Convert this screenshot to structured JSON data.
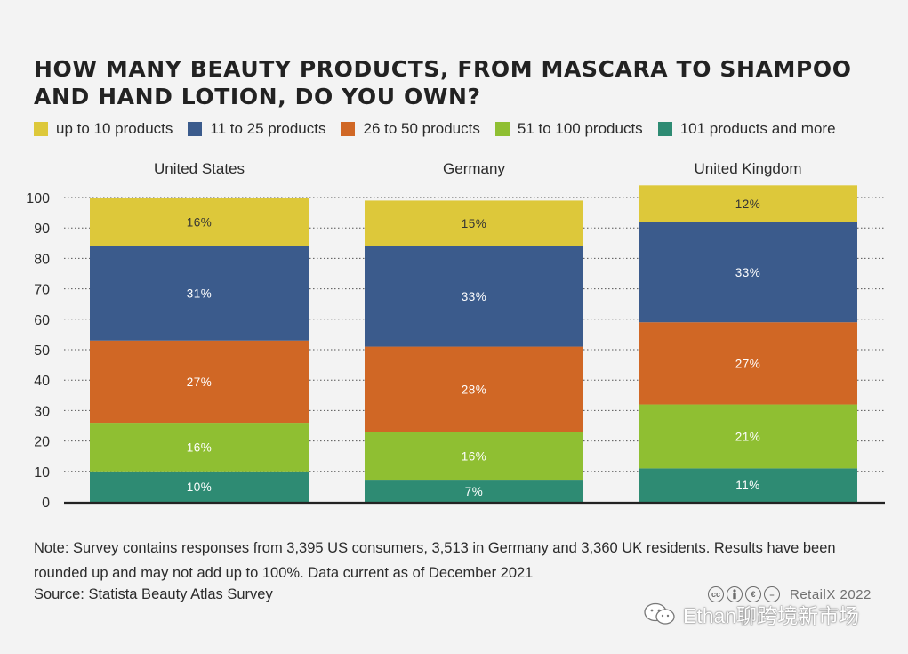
{
  "title": "HOW MANY BEAUTY PRODUCTS, FROM MASCARA TO SHAMPOO AND HAND LOTION, DO YOU OWN?",
  "note": "Note: Survey contains responses from 3,395 US consumers, 3,513 in Germany and 3,360 UK residents. Results have been rounded up and may not add up to 100%. Data current as of December 2021",
  "source": "Source: Statista Beauty Atlas Survey",
  "license": {
    "icons": [
      "cc-icon",
      "by-icon",
      "nc-icon",
      "nd-icon"
    ],
    "brand": "RetailX 2022"
  },
  "watermark": {
    "icon": "wechat-icon",
    "text": "Ethan聊跨境新市场"
  },
  "chart_data": {
    "type": "bar",
    "stacked": true,
    "categories": [
      "United States",
      "Germany",
      "United Kingdom"
    ],
    "ylim": [
      0,
      100
    ],
    "yticks": [
      0,
      10,
      20,
      30,
      40,
      50,
      60,
      70,
      80,
      90,
      100
    ],
    "grid": "horizontal-dotted",
    "legend_position": "top",
    "series": [
      {
        "name": "101 products and more",
        "color": "#2e8b73",
        "values": [
          10,
          7,
          11
        ],
        "labels": [
          "10%",
          "7%",
          "11%"
        ]
      },
      {
        "name": "51 to 100 products",
        "color": "#8fbf32",
        "values": [
          16,
          16,
          21
        ],
        "labels": [
          "16%",
          "16%",
          "21%"
        ]
      },
      {
        "name": "26 to 50 products",
        "color": "#d06725",
        "values": [
          27,
          28,
          27
        ],
        "labels": [
          "27%",
          "28%",
          "27%"
        ]
      },
      {
        "name": "11 to 25 products",
        "color": "#3b5b8c",
        "values": [
          31,
          33,
          33
        ],
        "labels": [
          "31%",
          "33%",
          "33%"
        ]
      },
      {
        "name": "up to 10 products",
        "color": "#ddc83a",
        "values": [
          16,
          15,
          12
        ],
        "labels": [
          "16%",
          "15%",
          "12%"
        ]
      }
    ],
    "legend_order": [
      "up to 10 products",
      "11 to 25 products",
      "26 to 50 products",
      "51 to 100 products",
      "101 products and more"
    ]
  }
}
